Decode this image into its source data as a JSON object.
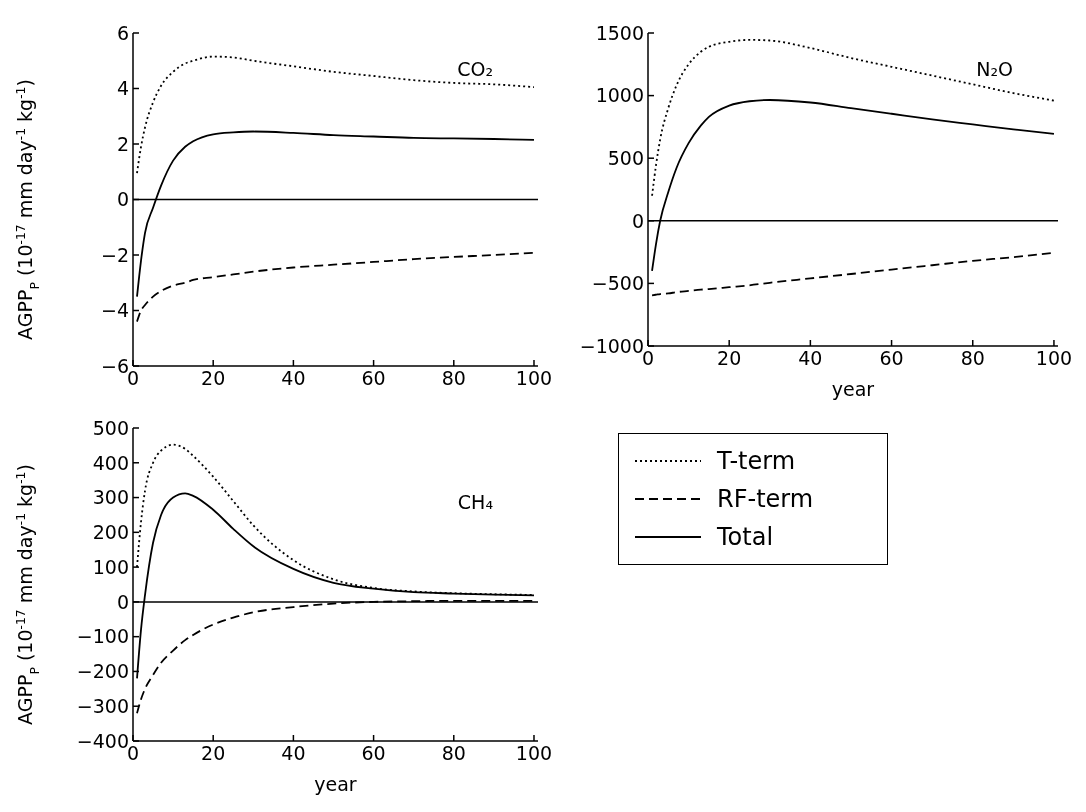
{
  "chart_data": [
    {
      "type": "line",
      "ylabel": "AGPP$_{P}$ (10$^{-17}$ mm day$^{-1}$ kg$^{-1}$)",
      "annotations": [
        "CO₂"
      ],
      "x": [
        1,
        2,
        3,
        5,
        7,
        10,
        13,
        15,
        20,
        25,
        30,
        40,
        50,
        60,
        70,
        80,
        90,
        100
      ],
      "series": [
        {
          "color": "#000000",
          "line_style": "dotted",
          "values": [
            0.95,
            1.9,
            2.6,
            3.5,
            4.1,
            4.6,
            4.9,
            5.0,
            5.15,
            5.12,
            5.0,
            4.8,
            4.6,
            4.45,
            4.3,
            4.2,
            4.15,
            4.05
          ]
        },
        {
          "color": "#000000",
          "line_style": "dashed",
          "values": [
            -4.4,
            -4.0,
            -3.8,
            -3.5,
            -3.3,
            -3.1,
            -3.0,
            -2.9,
            -2.8,
            -2.7,
            -2.6,
            -2.45,
            -2.35,
            -2.25,
            -2.15,
            -2.07,
            -2.0,
            -1.92
          ]
        },
        {
          "color": "#000000",
          "line_style": "solid",
          "values": [
            -3.5,
            -2.2,
            -1.2,
            -0.3,
            0.5,
            1.4,
            1.9,
            2.1,
            2.35,
            2.42,
            2.45,
            2.4,
            2.32,
            2.27,
            2.22,
            2.2,
            2.18,
            2.15
          ]
        }
      ],
      "xlim": [
        0,
        101
      ],
      "xticks": [
        0,
        20,
        40,
        60,
        80,
        100
      ],
      "ylim": [
        -6,
        6
      ],
      "yticks": [
        -6,
        -4,
        -2,
        0,
        2,
        4,
        6
      ],
      "ref_lines": [
        {
          "axis": "y",
          "value": 0,
          "color": "#000000"
        }
      ],
      "grid": false,
      "legend": false
    },
    {
      "type": "line",
      "xlabel": "year",
      "annotations": [
        "N₂O"
      ],
      "x": [
        1,
        2,
        3,
        5,
        7,
        10,
        13,
        15,
        20,
        25,
        30,
        40,
        50,
        60,
        70,
        80,
        90,
        100
      ],
      "series": [
        {
          "color": "#000000",
          "line_style": "dotted",
          "values": [
            200,
            450,
            650,
            900,
            1080,
            1250,
            1350,
            1390,
            1430,
            1445,
            1440,
            1380,
            1300,
            1230,
            1160,
            1090,
            1020,
            960
          ]
        },
        {
          "color": "#000000",
          "line_style": "dashed",
          "values": [
            -595,
            -590,
            -585,
            -580,
            -570,
            -560,
            -550,
            -545,
            -530,
            -515,
            -495,
            -460,
            -425,
            -390,
            -355,
            -320,
            -290,
            -255
          ]
        },
        {
          "color": "#000000",
          "line_style": "solid",
          "values": [
            -400,
            -180,
            0,
            230,
            420,
            620,
            760,
            830,
            920,
            955,
            965,
            945,
            900,
            855,
            810,
            770,
            730,
            695
          ]
        }
      ],
      "xlim": [
        0,
        101
      ],
      "xticks": [
        0,
        20,
        40,
        60,
        80,
        100
      ],
      "ylim": [
        -1000,
        1500
      ],
      "yticks": [
        -1000,
        -500,
        0,
        500,
        1000,
        1500
      ],
      "ref_lines": [
        {
          "axis": "y",
          "value": 0,
          "color": "#000000"
        }
      ],
      "grid": false,
      "legend": false
    },
    {
      "type": "line",
      "xlabel": "year",
      "ylabel": "AGPP$_{P}$ (10$^{-17}$ mm day$^{-1}$ kg$^{-1}$)",
      "annotations": [
        "CH₄"
      ],
      "x": [
        1,
        2,
        3,
        5,
        7,
        10,
        13,
        15,
        20,
        25,
        30,
        40,
        50,
        60,
        70,
        80,
        90,
        100
      ],
      "series": [
        {
          "name": "T-term",
          "color": "#000000",
          "line_style": "dotted",
          "values": [
            100,
            230,
            320,
            400,
            435,
            452,
            440,
            420,
            360,
            290,
            220,
            120,
            65,
            40,
            30,
            25,
            22,
            20
          ]
        },
        {
          "name": "RF-term",
          "color": "#000000",
          "line_style": "dashed",
          "values": [
            -320,
            -280,
            -250,
            -210,
            -175,
            -140,
            -110,
            -95,
            -65,
            -45,
            -30,
            -15,
            -5,
            0,
            2,
            3,
            3,
            3
          ]
        },
        {
          "name": "Total",
          "color": "#000000",
          "line_style": "solid",
          "values": [
            -220,
            -80,
            20,
            170,
            250,
            300,
            312,
            305,
            265,
            210,
            160,
            95,
            55,
            38,
            28,
            24,
            21,
            19
          ]
        }
      ],
      "xlim": [
        0,
        101
      ],
      "xticks": [
        0,
        20,
        40,
        60,
        80,
        100
      ],
      "ylim": [
        -400,
        500
      ],
      "yticks": [
        -400,
        -300,
        -200,
        -100,
        0,
        100,
        200,
        300,
        400,
        500
      ],
      "ref_lines": [
        {
          "axis": "y",
          "value": 0,
          "color": "#000000"
        }
      ],
      "grid": false,
      "legend": "right"
    }
  ]
}
